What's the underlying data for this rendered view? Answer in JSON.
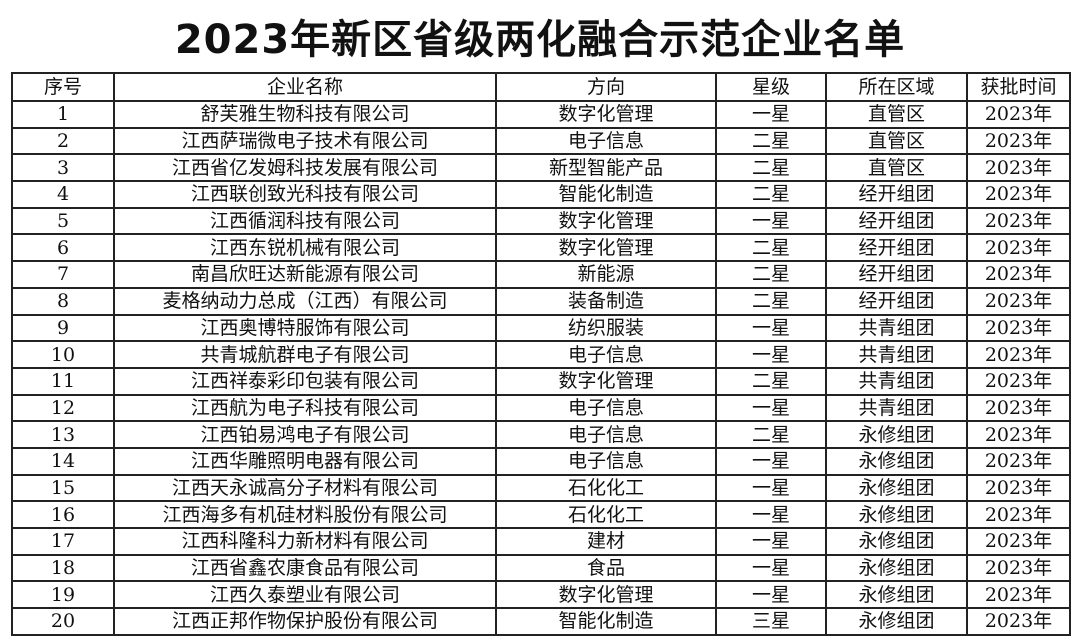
{
  "title": "2023年新区省级两化融合示范企业名单",
  "table": {
    "headers": [
      "序号",
      "企业名称",
      "方向",
      "星级",
      "所在区域",
      "获批时间"
    ],
    "rows": [
      [
        "1",
        "舒芙雅生物科技有限公司",
        "数字化管理",
        "一星",
        "直管区",
        "2023年"
      ],
      [
        "2",
        "江西萨瑞微电子技术有限公司",
        "电子信息",
        "二星",
        "直管区",
        "2023年"
      ],
      [
        "3",
        "江西省亿发姆科技发展有限公司",
        "新型智能产品",
        "二星",
        "直管区",
        "2023年"
      ],
      [
        "4",
        "江西联创致光科技有限公司",
        "智能化制造",
        "二星",
        "经开组团",
        "2023年"
      ],
      [
        "5",
        "江西循润科技有限公司",
        "数字化管理",
        "一星",
        "经开组团",
        "2023年"
      ],
      [
        "6",
        "江西东锐机械有限公司",
        "数字化管理",
        "二星",
        "经开组团",
        "2023年"
      ],
      [
        "7",
        "南昌欣旺达新能源有限公司",
        "新能源",
        "二星",
        "经开组团",
        "2023年"
      ],
      [
        "8",
        "麦格纳动力总成（江西）有限公司",
        "装备制造",
        "二星",
        "经开组团",
        "2023年"
      ],
      [
        "9",
        "江西奥博特服饰有限公司",
        "纺织服装",
        "一星",
        "共青组团",
        "2023年"
      ],
      [
        "10",
        "共青城航群电子有限公司",
        "电子信息",
        "一星",
        "共青组团",
        "2023年"
      ],
      [
        "11",
        "江西祥泰彩印包装有限公司",
        "数字化管理",
        "二星",
        "共青组团",
        "2023年"
      ],
      [
        "12",
        "江西航为电子科技有限公司",
        "电子信息",
        "一星",
        "共青组团",
        "2023年"
      ],
      [
        "13",
        "江西铂易鸿电子有限公司",
        "电子信息",
        "二星",
        "永修组团",
        "2023年"
      ],
      [
        "14",
        "江西华雕照明电器有限公司",
        "电子信息",
        "一星",
        "永修组团",
        "2023年"
      ],
      [
        "15",
        "江西天永诚高分子材料有限公司",
        "石化化工",
        "一星",
        "永修组团",
        "2023年"
      ],
      [
        "16",
        "江西海多有机硅材料股份有限公司",
        "石化化工",
        "一星",
        "永修组团",
        "2023年"
      ],
      [
        "17",
        "江西科隆科力新材料有限公司",
        "建材",
        "一星",
        "永修组团",
        "2023年"
      ],
      [
        "18",
        "江西省鑫农康食品有限公司",
        "食品",
        "一星",
        "永修组团",
        "2023年"
      ],
      [
        "19",
        "江西久泰塑业有限公司",
        "数字化管理",
        "一星",
        "永修组团",
        "2023年"
      ],
      [
        "20",
        "江西正邦作物保护股份有限公司",
        "智能化制造",
        "三星",
        "永修组团",
        "2023年"
      ]
    ]
  }
}
